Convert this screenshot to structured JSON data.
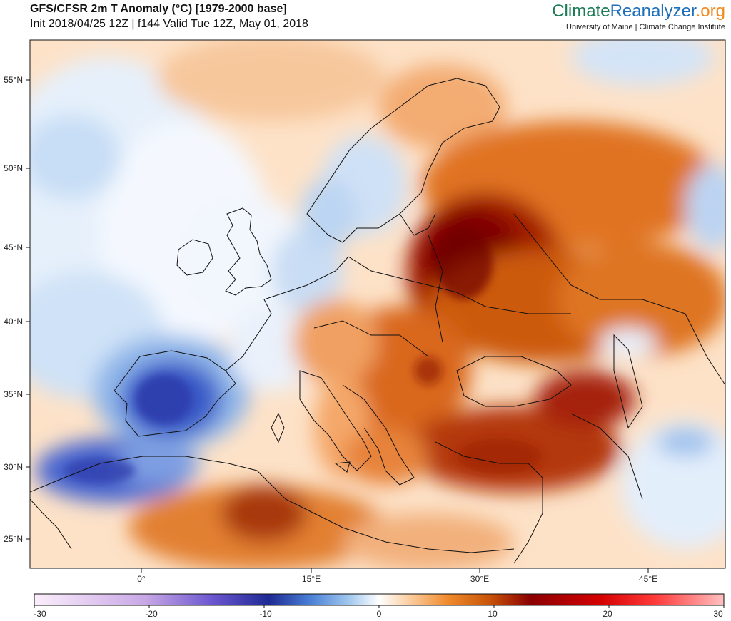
{
  "header": {
    "title": "GFS/CFSR 2m T Anomaly (°C) [1979-2000 base]",
    "subtitle": "Init 2018/04/25 12Z | f144 Valid Tue 12Z, May 01, 2018"
  },
  "brand": {
    "part1": "Climate",
    "part2": "Reanalyzer",
    "part3": ".org",
    "affiliation": "University of Maine | Climate Change Institute"
  },
  "axes": {
    "lat_labels": [
      "55°N",
      "50°N",
      "45°N",
      "40°N",
      "35°N",
      "30°N",
      "25°N"
    ],
    "lon_labels": [
      "0°",
      "15°E",
      "30°E",
      "45°E"
    ]
  },
  "colorbar": {
    "ticks": [
      "-30",
      "-20",
      "-10",
      "0",
      "10",
      "20",
      "30"
    ],
    "colors": [
      "#f7e8f7",
      "#c9a8e6",
      "#7b5bd1",
      "#1e2a94",
      "#4a7fd6",
      "#a8cdf0",
      "#ffffff",
      "#fbd3a8",
      "#f08a2c",
      "#d9610d",
      "#8b0000",
      "#d40000",
      "#ff3a3a",
      "#ffb0b0"
    ]
  }
}
